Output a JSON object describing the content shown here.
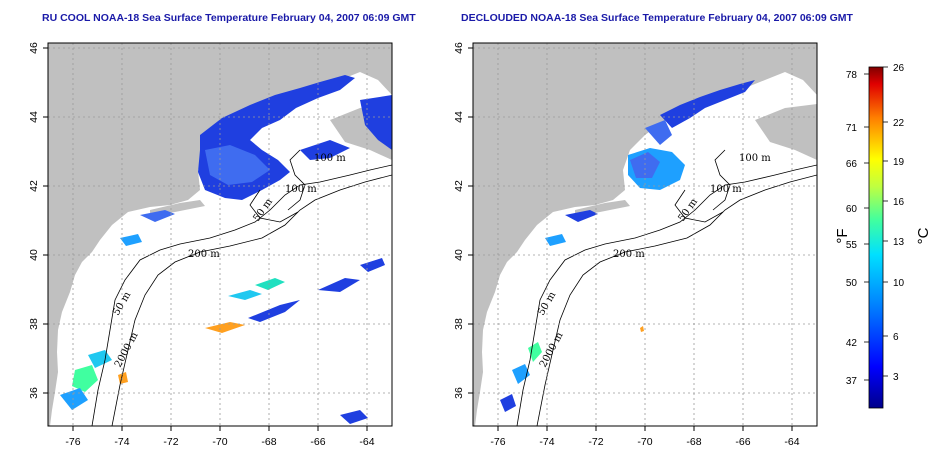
{
  "left_map": {
    "title": "RU COOL NOAA-18 Sea Surface Temperature February 04, 2007 06:09 GMT"
  },
  "right_map": {
    "title": "DECLOUDED NOAA-18 Sea Surface Temperature February 04, 2007 06:09 GMT"
  },
  "axes": {
    "lon_ticks": [
      "-76",
      "-74",
      "-72",
      "-70",
      "-68",
      "-66",
      "-64"
    ],
    "lat_ticks": [
      "46",
      "44",
      "42",
      "40",
      "38",
      "36"
    ],
    "lon_range": [
      -77,
      -63
    ],
    "lat_range": [
      35,
      46
    ]
  },
  "contours": {
    "labels": [
      "100 m",
      "100 m",
      "50 m",
      "200 m",
      "50 m",
      "2000 m"
    ]
  },
  "colorbar": {
    "fahrenheit_ticks": [
      "78",
      "71",
      "66",
      "60",
      "55",
      "50",
      "42",
      "37"
    ],
    "celsius_ticks": [
      "26",
      "22",
      "19",
      "16",
      "13",
      "10",
      "6",
      "3"
    ],
    "fahrenheit_unit": "°F",
    "celsius_unit": "°C"
  },
  "colors": {
    "land": "#c0c0c0",
    "title": "#1a1aa8",
    "sst_cold": "#1f3fe0",
    "sst_mid": "#00c8ff"
  }
}
